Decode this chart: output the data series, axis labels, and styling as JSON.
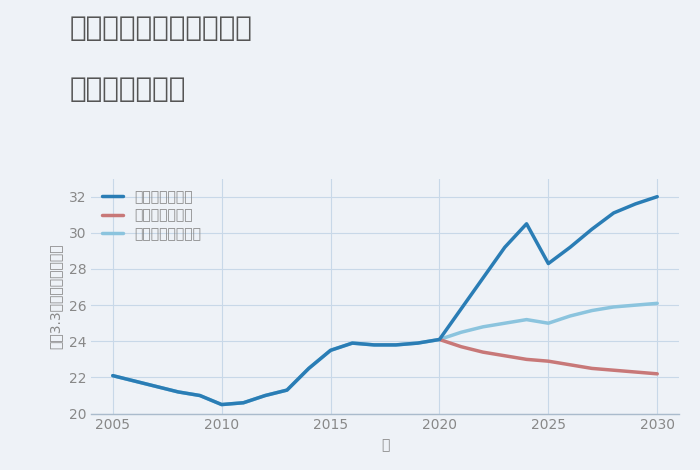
{
  "title_line1": "兵庫県西宮市生瀬高台の",
  "title_line2": "土地の価格推移",
  "xlabel": "年",
  "ylabel": "坪（3.3㎡）単価（万円）",
  "background_color": "#eef2f7",
  "plot_background": "#eef2f7",
  "ylim": [
    20,
    33
  ],
  "yticks": [
    20,
    22,
    24,
    26,
    28,
    30,
    32
  ],
  "xlim": [
    2004,
    2031
  ],
  "xticks": [
    2005,
    2010,
    2015,
    2020,
    2025,
    2030
  ],
  "good_scenario": {
    "label": "グッドシナリオ",
    "color": "#2a7db5",
    "linewidth": 2.5,
    "x": [
      2005,
      2006,
      2007,
      2008,
      2009,
      2010,
      2011,
      2012,
      2013,
      2014,
      2015,
      2016,
      2017,
      2018,
      2019,
      2020,
      2021,
      2022,
      2023,
      2024,
      2025,
      2026,
      2027,
      2028,
      2029,
      2030
    ],
    "y": [
      22.1,
      21.8,
      21.5,
      21.2,
      21.0,
      20.5,
      20.6,
      21.0,
      21.3,
      22.5,
      23.5,
      23.9,
      23.8,
      23.8,
      23.9,
      24.1,
      25.8,
      27.5,
      29.2,
      30.5,
      28.3,
      29.2,
      30.2,
      31.1,
      31.6,
      32.0
    ]
  },
  "bad_scenario": {
    "label": "バッドシナリオ",
    "color": "#c87878",
    "linewidth": 2.5,
    "x": [
      2020,
      2021,
      2022,
      2023,
      2024,
      2025,
      2026,
      2027,
      2028,
      2029,
      2030
    ],
    "y": [
      24.1,
      23.7,
      23.4,
      23.2,
      23.0,
      22.9,
      22.7,
      22.5,
      22.4,
      22.3,
      22.2
    ]
  },
  "normal_scenario": {
    "label": "ノーマルシナリオ",
    "color": "#8bc4de",
    "linewidth": 2.5,
    "x": [
      2005,
      2006,
      2007,
      2008,
      2009,
      2010,
      2011,
      2012,
      2013,
      2014,
      2015,
      2016,
      2017,
      2018,
      2019,
      2020,
      2021,
      2022,
      2023,
      2024,
      2025,
      2026,
      2027,
      2028,
      2029,
      2030
    ],
    "y": [
      22.1,
      21.8,
      21.5,
      21.2,
      21.0,
      20.5,
      20.6,
      21.0,
      21.3,
      22.5,
      23.5,
      23.9,
      23.8,
      23.8,
      23.9,
      24.1,
      24.5,
      24.8,
      25.0,
      25.2,
      25.0,
      25.4,
      25.7,
      25.9,
      26.0,
      26.1
    ]
  },
  "grid_color": "#c8d8e8",
  "title_color": "#555555",
  "tick_color": "#888888",
  "legend_fontsize": 10,
  "title_fontsize": 20,
  "axis_label_fontsize": 10
}
